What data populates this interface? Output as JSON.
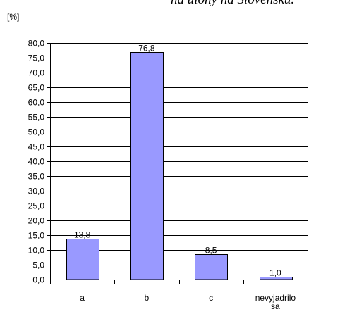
{
  "chart_data": {
    "type": "bar",
    "title": "ná ulohy na Slovensku.",
    "ylabel": "[%]",
    "xlabel": "",
    "categories": [
      "a",
      "b",
      "c",
      "nevyjadrilo sa"
    ],
    "category_lines": [
      [
        "a"
      ],
      [
        "b"
      ],
      [
        "c"
      ],
      [
        "nevyjadrilo",
        "sa"
      ]
    ],
    "values": [
      13.8,
      76.8,
      8.5,
      1.0
    ],
    "value_labels": [
      "13,8",
      "76,8",
      "8,5",
      "1,0"
    ],
    "ylim": [
      0,
      80
    ],
    "yticks": [
      0,
      5,
      10,
      15,
      20,
      25,
      30,
      35,
      40,
      45,
      50,
      55,
      60,
      65,
      70,
      75,
      80
    ],
    "ytick_labels": [
      "0,0",
      "5,0",
      "10,0",
      "15,0",
      "20,0",
      "25,0",
      "30,0",
      "35,0",
      "40,0",
      "45,0",
      "50,0",
      "55,0",
      "60,0",
      "65,0",
      "70,0",
      "75,0",
      "80,0"
    ],
    "grid": true,
    "legend": "none",
    "colors": {
      "bar": "#9999ff",
      "bar_stroke": "#000000",
      "grid": "#000000"
    }
  }
}
